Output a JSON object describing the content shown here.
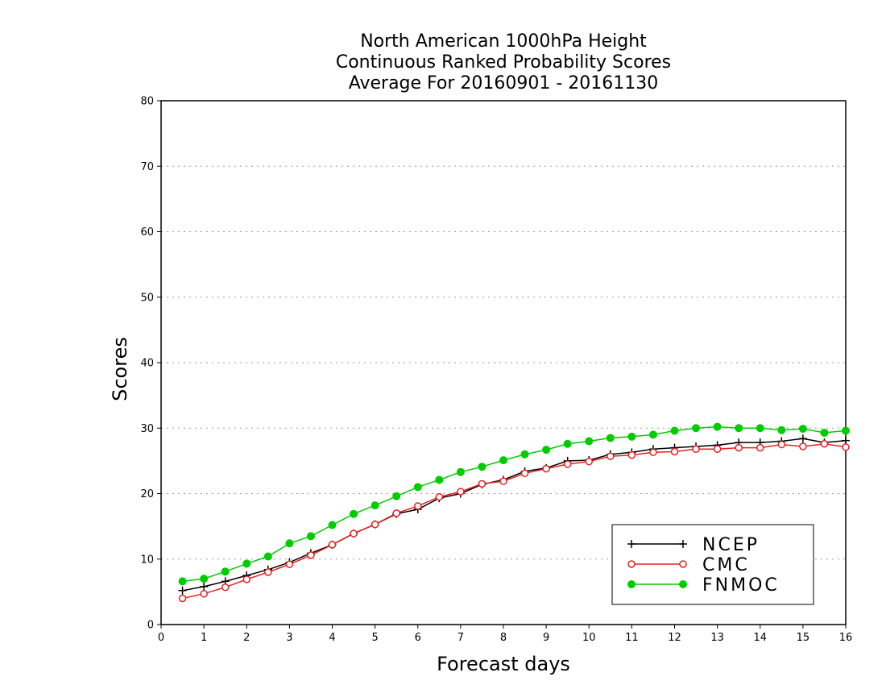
{
  "chart_data": {
    "type": "line",
    "title": [
      "North American 1000hPa Height",
      "Continuous Ranked Probability Scores",
      "Average For 20160901 - 20161130"
    ],
    "xlabel": "Forecast days",
    "ylabel": "Scores",
    "xlim": [
      0,
      16
    ],
    "ylim": [
      0,
      80
    ],
    "xticks": [
      "0",
      "1",
      "2",
      "3",
      "4",
      "5",
      "6",
      "7",
      "8",
      "9",
      "10",
      "11",
      "12",
      "13",
      "14",
      "15",
      "16"
    ],
    "yticks": [
      "0",
      "10",
      "20",
      "30",
      "40",
      "50",
      "60",
      "70",
      "80"
    ],
    "grid": "horizontal dotted",
    "legend_position": "bottom-right",
    "x": [
      0.5,
      1,
      1.5,
      2,
      2.5,
      3,
      3.5,
      4,
      4.5,
      5,
      5.5,
      6,
      6.5,
      7,
      7.5,
      8,
      8.5,
      9,
      9.5,
      10,
      10.5,
      11,
      11.5,
      12,
      12.5,
      13,
      13.5,
      14,
      14.5,
      15,
      15.5,
      16
    ],
    "series": [
      {
        "name": "NCEP",
        "color": "#000000",
        "marker": "plus",
        "values": [
          5.2,
          5.8,
          6.6,
          7.5,
          8.4,
          9.5,
          10.9,
          12.2,
          13.9,
          15.3,
          16.9,
          17.6,
          19.3,
          20.0,
          21.4,
          22.1,
          23.4,
          23.9,
          25.0,
          25.1,
          26.0,
          26.3,
          26.8,
          27.0,
          27.2,
          27.4,
          27.8,
          27.8,
          28.0,
          28.4,
          27.8,
          28.1
        ]
      },
      {
        "name": "CMC",
        "color": "#e82020",
        "marker": "open-circle",
        "values": [
          4.0,
          4.7,
          5.7,
          6.9,
          8.0,
          9.2,
          10.6,
          12.2,
          13.9,
          15.3,
          17.0,
          18.1,
          19.5,
          20.3,
          21.5,
          21.9,
          23.1,
          23.8,
          24.5,
          24.9,
          25.7,
          25.9,
          26.3,
          26.4,
          26.8,
          26.8,
          27.0,
          27.0,
          27.5,
          27.2,
          27.6,
          27.1
        ]
      },
      {
        "name": "FNMOC",
        "color": "#00cc00",
        "marker": "filled-circle",
        "values": [
          6.6,
          7.0,
          8.1,
          9.3,
          10.4,
          12.4,
          13.5,
          15.2,
          16.9,
          18.2,
          19.6,
          21.0,
          22.1,
          23.3,
          24.1,
          25.1,
          26.0,
          26.7,
          27.6,
          28.0,
          28.5,
          28.7,
          29.0,
          29.6,
          30.0,
          30.2,
          30.0,
          30.0,
          29.7,
          29.9,
          29.3,
          29.6
        ]
      }
    ]
  }
}
